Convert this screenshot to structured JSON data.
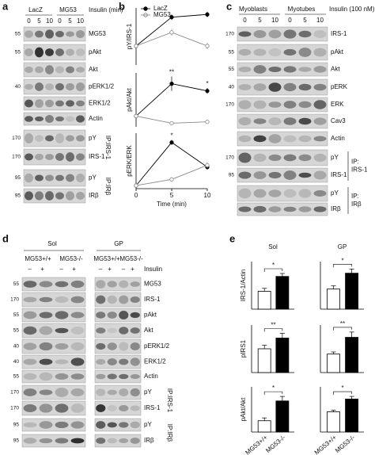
{
  "panel_a": {
    "label": "a",
    "groups": [
      "LacZ",
      "MG53"
    ],
    "condition": "Insulin (min)",
    "lanes": [
      "0",
      "5",
      "10",
      "0",
      "5",
      "10"
    ],
    "rows": [
      "MG53",
      "pAkt",
      "Akt",
      "pERK1/2",
      "ERK1/2",
      "Actin",
      "pY",
      "IRS-1",
      "pY",
      "IRβ"
    ],
    "mw": [
      "55",
      "55",
      "40",
      "170",
      "170",
      "95",
      "95"
    ],
    "ip_labels": [
      "IP:IRS-1",
      "IP:IRβ"
    ]
  },
  "panel_b": {
    "label": "b"
  },
  "panel_c": {
    "label": "c",
    "groups": [
      "Myoblasts",
      "Myotubes"
    ],
    "condition": "Insulin (100 nM)",
    "lanes": [
      "0",
      "5",
      "10",
      "0",
      "5",
      "10"
    ],
    "rows": [
      "IRS-1",
      "pAkt",
      "Akt",
      "pERK",
      "ERK",
      "Cav3",
      "Actin",
      "pY",
      "IRS-1",
      "pY",
      "IRβ"
    ],
    "mw": [
      "170",
      "55",
      "55",
      "40",
      "170",
      "170",
      "95"
    ],
    "ip_labels": [
      [
        "IP:",
        "IRS-1"
      ],
      [
        "IP:",
        "IRβ"
      ]
    ]
  },
  "panel_d": {
    "label": "d",
    "groups": [
      "Sol",
      "GP"
    ],
    "genotypes": [
      "MG53+/+",
      "MG53-/-",
      "MG53+/+",
      "MG53-/-"
    ],
    "condition": "Insulin",
    "lanes": [
      "–",
      "+",
      "–",
      "+",
      "–",
      "+",
      "–",
      "+"
    ],
    "rows": [
      "MG53",
      "IRS-1",
      "pAkt",
      "Akt",
      "pERK1/2",
      "ERK1/2",
      "Actin",
      "pY",
      "IRS-1",
      "pY",
      "IRβ"
    ],
    "mw": [
      "55",
      "170",
      "55",
      "55",
      "40",
      "40",
      "55",
      "170",
      "170",
      "95",
      "95"
    ],
    "ip_labels": [
      "IP:IRS-1",
      "IP:IRβ"
    ]
  },
  "panel_e": {
    "label": "e"
  },
  "chart_data": [
    {
      "type": "line",
      "ylabel": "pY/IRS-1",
      "x": [
        0,
        5,
        10
      ],
      "xlim": [
        0,
        10
      ],
      "ylim": [
        0,
        1.05
      ],
      "series": [
        {
          "name": "LacZ",
          "color": "#000000",
          "values": [
            0.35,
            0.88,
            0.93
          ],
          "errors": [
            0.03,
            0.05,
            0.05
          ]
        },
        {
          "name": "MG53",
          "color": "#888888",
          "values": [
            0.35,
            0.6,
            0.35
          ],
          "errors": [
            0.03,
            0.06,
            0.06
          ]
        }
      ]
    },
    {
      "type": "line",
      "ylabel": "pAkt/Akt",
      "x": [
        0,
        5,
        10
      ],
      "xlim": [
        0,
        10
      ],
      "ylim": [
        -0.05,
        0.7
      ],
      "significance": [
        null,
        "**",
        "*"
      ],
      "series": [
        {
          "name": "LacZ",
          "color": "#000000",
          "values": [
            0.1,
            0.55,
            0.45
          ],
          "errors": [
            0.02,
            0.1,
            0.04
          ]
        },
        {
          "name": "MG53",
          "color": "#888888",
          "values": [
            0.1,
            0.0,
            0.02
          ],
          "errors": [
            0.02,
            0.02,
            0.02
          ]
        }
      ]
    },
    {
      "type": "line",
      "ylabel": "pERK/ERK",
      "x": [
        0,
        5,
        10
      ],
      "xlim": [
        0,
        10
      ],
      "xticks": [
        0,
        5,
        10
      ],
      "xlabel": "Time (min)",
      "ylim": [
        0,
        0.9
      ],
      "significance": [
        null,
        "*",
        null
      ],
      "series": [
        {
          "name": "LacZ",
          "color": "#000000",
          "values": [
            0.05,
            0.75,
            0.35
          ],
          "errors": [
            0.02,
            0.04,
            0.04
          ]
        },
        {
          "name": "MG53",
          "color": "#888888",
          "values": [
            0.05,
            0.15,
            0.38
          ],
          "errors": [
            0.02,
            0.04,
            0.05
          ]
        }
      ]
    },
    {
      "type": "bar",
      "title": "Sol",
      "ylabel": "IRS-1/Actin",
      "categories": [
        null,
        null
      ],
      "values": [
        0.3,
        0.55
      ],
      "errors": [
        0.05,
        0.05
      ],
      "colors": [
        "#ffffff",
        "#000000"
      ],
      "ylim": [
        0,
        0.8
      ],
      "significance": "*"
    },
    {
      "type": "bar",
      "title": "GP",
      "categories": [
        null,
        null
      ],
      "values": [
        0.38,
        0.68
      ],
      "errors": [
        0.06,
        0.08
      ],
      "colors": [
        "#ffffff",
        "#000000"
      ],
      "ylim": [
        0,
        0.9
      ],
      "significance": "*"
    },
    {
      "type": "bar",
      "ylabel": "pIRS1",
      "categories": [
        null,
        null
      ],
      "values": [
        1.0,
        1.45
      ],
      "errors": [
        0.15,
        0.2
      ],
      "colors": [
        "#ffffff",
        "#000000"
      ],
      "ylim": [
        0,
        2.0
      ],
      "significance": "**"
    },
    {
      "type": "bar",
      "categories": [
        null,
        null
      ],
      "values": [
        1.05,
        2.0
      ],
      "errors": [
        0.12,
        0.3
      ],
      "colors": [
        "#ffffff",
        "#000000"
      ],
      "ylim": [
        0,
        2.7
      ],
      "significance": "**"
    },
    {
      "type": "bar",
      "ylabel": "pAkt/Akt",
      "categories": [
        "MG53+/+",
        "MG53-/-"
      ],
      "values": [
        0.2,
        0.55
      ],
      "errors": [
        0.05,
        0.08
      ],
      "colors": [
        "#ffffff",
        "#000000"
      ],
      "ylim": [
        0,
        0.8
      ],
      "significance": "*"
    },
    {
      "type": "bar",
      "categories": [
        "MG53+/+",
        "MG53-/-"
      ],
      "values": [
        0.38,
        0.62
      ],
      "errors": [
        0.03,
        0.05
      ],
      "colors": [
        "#ffffff",
        "#000000"
      ],
      "ylim": [
        0,
        0.85
      ],
      "significance": "*"
    }
  ]
}
